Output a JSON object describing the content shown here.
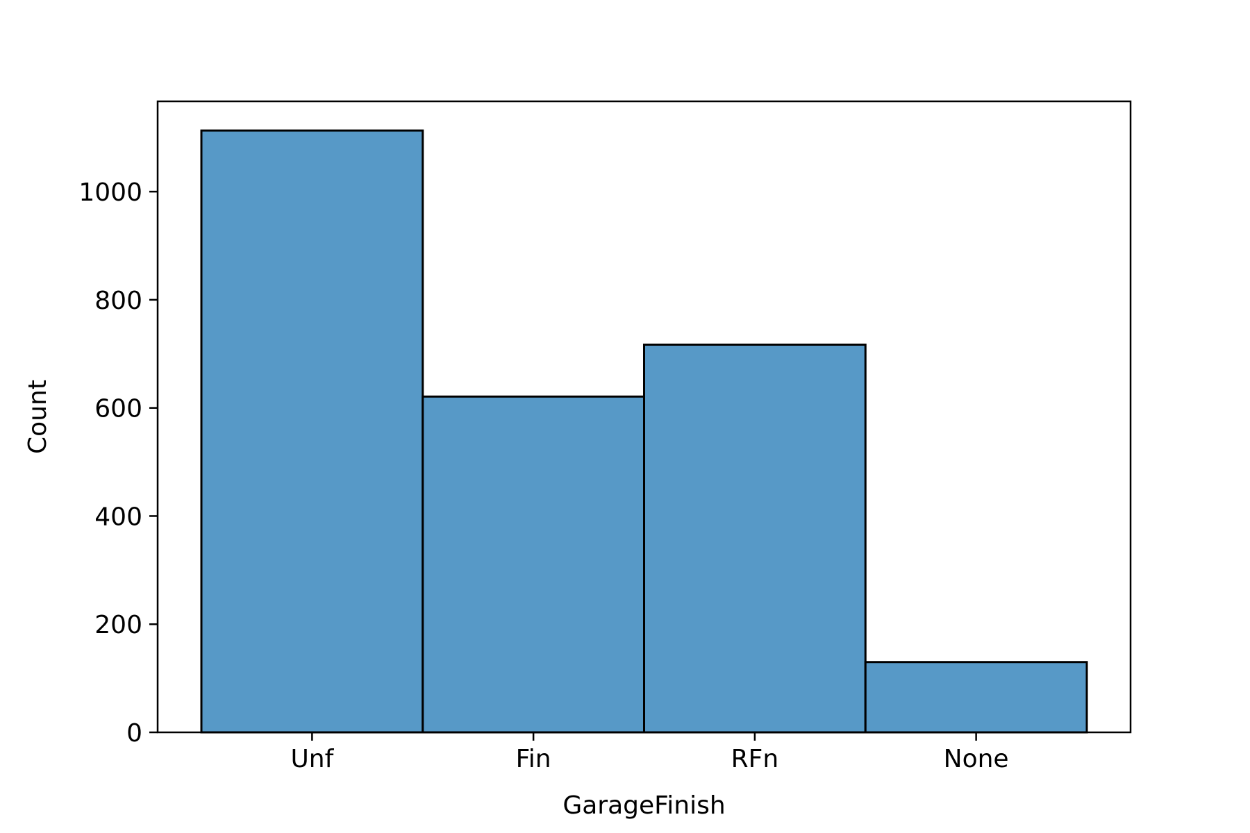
{
  "chart_data": {
    "type": "bar",
    "categories": [
      "Unf",
      "Fin",
      "RFn",
      "None"
    ],
    "values": [
      1113,
      621,
      717,
      130
    ],
    "xlabel": "GarageFinish",
    "ylabel": "Count",
    "ylim": [
      0,
      1167
    ],
    "yticks": [
      0,
      200,
      400,
      600,
      800,
      1000
    ],
    "grid": false,
    "bar_color": "#5799c7",
    "edge_color": "#000000"
  }
}
